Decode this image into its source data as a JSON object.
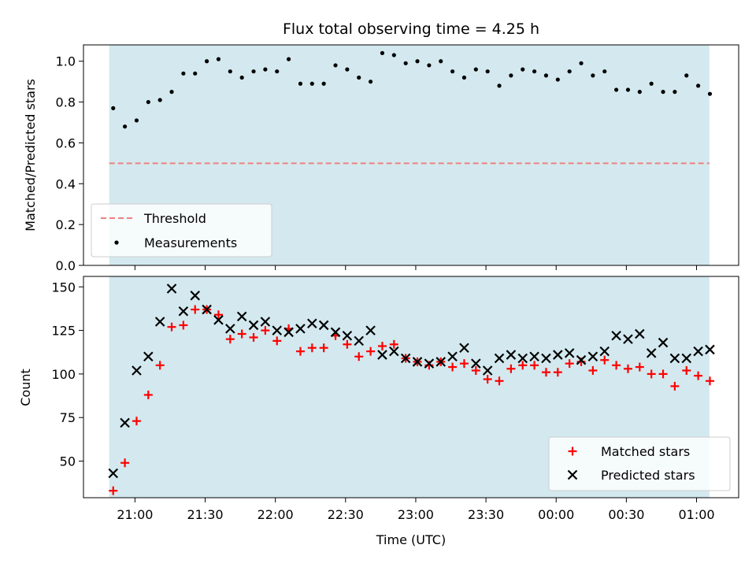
{
  "title": "Flux total observing time = 4.25 h",
  "colors": {
    "shade": "#d3e9ef",
    "threshold": "#f08080",
    "measurement": "#000000",
    "matched": "#ff0000",
    "predicted": "#000000"
  },
  "chart_data": [
    {
      "type": "scatter",
      "ylabel": "Matched/Predicted stars",
      "xlabel": "",
      "ylim": [
        0,
        1.08
      ],
      "yticks": [
        "0.0",
        "0.2",
        "0.4",
        "0.6",
        "0.8",
        "1.0"
      ],
      "shaded_span_minutes": [
        -11,
        245.5
      ],
      "threshold": 0.5,
      "legend_position": "lower-left",
      "legend": {
        "threshold": "Threshold",
        "measurements": "Measurements"
      },
      "series": [
        {
          "name": "Measurements",
          "x_minutes": [
            -9.3,
            -4.3,
            0.7,
            5.7,
            10.7,
            15.7,
            20.7,
            25.7,
            30.7,
            35.7,
            40.7,
            45.7,
            50.7,
            55.7,
            60.7,
            65.7,
            70.7,
            75.7,
            80.7,
            85.7,
            90.7,
            95.7,
            100.7,
            105.7,
            110.7,
            115.7,
            120.7,
            125.7,
            130.7,
            135.7,
            140.7,
            145.7,
            150.7,
            155.7,
            160.7,
            165.7,
            170.7,
            175.7,
            180.7,
            185.7,
            190.7,
            195.7,
            200.7,
            205.7,
            210.7,
            215.7,
            220.7,
            225.7,
            230.7,
            235.7,
            240.7,
            245.7
          ],
          "y": [
            0.77,
            0.68,
            0.71,
            0.8,
            0.81,
            0.85,
            0.94,
            0.94,
            1.0,
            1.01,
            0.95,
            0.92,
            0.95,
            0.96,
            0.95,
            1.01,
            0.89,
            0.89,
            0.89,
            0.98,
            0.96,
            0.92,
            0.9,
            1.04,
            1.03,
            0.99,
            1.0,
            0.98,
            1.0,
            0.95,
            0.92,
            0.96,
            0.95,
            0.88,
            0.93,
            0.96,
            0.95,
            0.93,
            0.91,
            0.95,
            0.99,
            0.93,
            0.95,
            0.86,
            0.86,
            0.85,
            0.89,
            0.85,
            0.85,
            0.93,
            0.88,
            0.84
          ]
        }
      ]
    },
    {
      "type": "scatter",
      "ylabel": "Count",
      "xlabel": "Time (UTC)",
      "ylim": [
        29,
        156
      ],
      "yticks": [
        "50",
        "75",
        "100",
        "125",
        "150"
      ],
      "xticks": [
        "21:00",
        "21:30",
        "22:00",
        "22:30",
        "23:00",
        "23:30",
        "00:00",
        "00:30",
        "01:00"
      ],
      "xlim_minutes": [
        -22,
        258
      ],
      "shaded_span_minutes": [
        -11,
        245.5
      ],
      "legend_position": "lower-right",
      "series": [
        {
          "name": "Matched stars",
          "x_minutes": [
            -9.3,
            -4.3,
            0.7,
            5.7,
            10.7,
            15.7,
            20.7,
            25.7,
            30.7,
            35.7,
            40.7,
            45.7,
            50.7,
            55.7,
            60.7,
            65.7,
            70.7,
            75.7,
            80.7,
            85.7,
            90.7,
            95.7,
            100.7,
            105.7,
            110.7,
            115.7,
            120.7,
            125.7,
            130.7,
            135.7,
            140.7,
            145.7,
            150.7,
            155.7,
            160.7,
            165.7,
            170.7,
            175.7,
            180.7,
            185.7,
            190.7,
            195.7,
            200.7,
            205.7,
            210.7,
            215.7,
            220.7,
            225.7,
            230.7,
            235.7,
            240.7,
            245.7
          ],
          "y": [
            33,
            49,
            73,
            88,
            105,
            127,
            128,
            137,
            137,
            134,
            120,
            123,
            121,
            125,
            119,
            126,
            113,
            115,
            115,
            122,
            117,
            110,
            113,
            116,
            117,
            109,
            107,
            105,
            107,
            104,
            106,
            102,
            97,
            96,
            103,
            105,
            105,
            101,
            101,
            106,
            107,
            102,
            108,
            105,
            103,
            104,
            100,
            100,
            93,
            102,
            99,
            96
          ]
        },
        {
          "name": "Predicted stars",
          "x_minutes": [
            -9.3,
            -4.3,
            0.7,
            5.7,
            10.7,
            15.7,
            20.7,
            25.7,
            30.7,
            35.7,
            40.7,
            45.7,
            50.7,
            55.7,
            60.7,
            65.7,
            70.7,
            75.7,
            80.7,
            85.7,
            90.7,
            95.7,
            100.7,
            105.7,
            110.7,
            115.7,
            120.7,
            125.7,
            130.7,
            135.7,
            140.7,
            145.7,
            150.7,
            155.7,
            160.7,
            165.7,
            170.7,
            175.7,
            180.7,
            185.7,
            190.7,
            195.7,
            200.7,
            205.7,
            210.7,
            215.7,
            220.7,
            225.7,
            230.7,
            235.7,
            240.7,
            245.7
          ],
          "y": [
            43,
            72,
            102,
            110,
            130,
            149,
            136,
            145,
            137,
            131,
            126,
            133,
            128,
            130,
            125,
            124,
            126,
            129,
            128,
            124,
            122,
            119,
            125,
            111,
            113,
            109,
            107,
            106,
            107,
            110,
            115,
            106,
            102,
            109,
            111,
            109,
            110,
            109,
            111,
            112,
            108,
            110,
            113,
            122,
            120,
            123,
            112,
            118,
            109,
            109,
            113,
            114
          ]
        }
      ]
    }
  ]
}
